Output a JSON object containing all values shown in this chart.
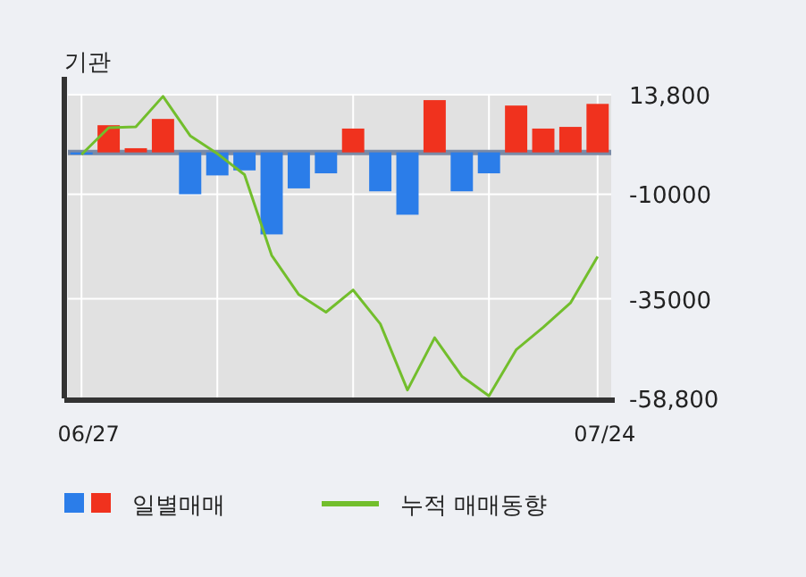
{
  "chart_data": {
    "type": "bar",
    "title": "기관",
    "categories": [
      "06/27",
      null,
      null,
      null,
      null,
      null,
      null,
      null,
      null,
      null,
      null,
      null,
      null,
      null,
      null,
      null,
      null,
      null,
      null,
      "07/24"
    ],
    "series": [
      {
        "name": "일별매매",
        "colors": [
          "#2b7de9",
          "#f0321e",
          "#f0321e",
          "#f0321e",
          "#2b7de9",
          "#2b7de9",
          "#2b7de9",
          "#2b7de9",
          "#2b7de9",
          "#2b7de9",
          "#f0321e",
          "#2b7de9",
          "#2b7de9",
          "#f0321e",
          "#2b7de9",
          "#2b7de9",
          "#f0321e",
          "#f0321e",
          "#f0321e",
          "#f0321e"
        ],
        "values": [
          -500,
          6500,
          1000,
          8000,
          -10000,
          -5500,
          -4300,
          -19600,
          -8600,
          -5000,
          5700,
          -9300,
          -14900,
          12500,
          -9300,
          -5000,
          11200,
          5700,
          6100,
          11600
        ]
      },
      {
        "name": "누적 매매동향",
        "type": "line",
        "color": "#72be2c",
        "values": [
          -500,
          5900,
          6100,
          13400,
          4000,
          -300,
          -5300,
          -24600,
          -34000,
          -38200,
          -32900,
          -41000,
          -56800,
          -44300,
          -53500,
          -58200,
          -47200,
          -41800,
          -36000,
          -24900
        ]
      }
    ],
    "ylim": [
      -58800,
      13800
    ],
    "yticks": [
      {
        "value": 13800,
        "label": "13,800"
      },
      -10000,
      -35000,
      {
        "value": -58800,
        "label": "-58,800"
      }
    ],
    "ref_lines": [
      {
        "axis": "y",
        "value": 0,
        "color": "#7a8aa6"
      }
    ],
    "grid": true,
    "legend": "bottom"
  }
}
